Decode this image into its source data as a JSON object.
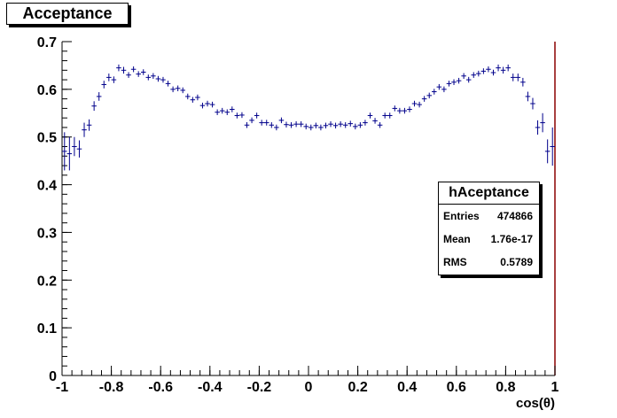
{
  "chart_data": {
    "type": "scatter",
    "title": "Acceptance",
    "xlabel": "cos(θ)",
    "ylabel": "",
    "xlim": [
      -1,
      1
    ],
    "ylim": [
      0,
      0.7
    ],
    "x_ticks": [
      "-1",
      "-0.8",
      "-0.6",
      "-0.4",
      "-0.2",
      "0",
      "0.2",
      "0.4",
      "0.6",
      "0.8",
      "1"
    ],
    "y_ticks": [
      "0",
      "0.1",
      "0.2",
      "0.3",
      "0.4",
      "0.5",
      "0.6",
      "0.7"
    ],
    "grid": false,
    "marker_color": "#00008b",
    "x": [
      -0.99,
      -0.97,
      -0.95,
      -0.93,
      -0.91,
      -0.89,
      -0.87,
      -0.85,
      -0.83,
      -0.81,
      -0.79,
      -0.77,
      -0.75,
      -0.73,
      -0.71,
      -0.69,
      -0.67,
      -0.65,
      -0.63,
      -0.61,
      -0.59,
      -0.57,
      -0.55,
      -0.53,
      -0.51,
      -0.49,
      -0.47,
      -0.45,
      -0.43,
      -0.41,
      -0.39,
      -0.37,
      -0.35,
      -0.33,
      -0.31,
      -0.29,
      -0.27,
      -0.25,
      -0.23,
      -0.21,
      -0.19,
      -0.17,
      -0.15,
      -0.13,
      -0.11,
      -0.09,
      -0.07,
      -0.05,
      -0.03,
      -0.01,
      0.01,
      0.03,
      0.05,
      0.07,
      0.09,
      0.11,
      0.13,
      0.15,
      0.17,
      0.19,
      0.21,
      0.23,
      0.25,
      0.27,
      0.29,
      0.31,
      0.33,
      0.35,
      0.37,
      0.39,
      0.41,
      0.43,
      0.45,
      0.47,
      0.49,
      0.51,
      0.53,
      0.55,
      0.57,
      0.59,
      0.61,
      0.63,
      0.65,
      0.67,
      0.69,
      0.71,
      0.73,
      0.75,
      0.77,
      0.79,
      0.81,
      0.83,
      0.85,
      0.87,
      0.89,
      0.91,
      0.93,
      0.95,
      0.97,
      0.99
    ],
    "y": [
      0.47,
      0.465,
      0.48,
      0.475,
      0.515,
      0.525,
      0.565,
      0.585,
      0.61,
      0.625,
      0.62,
      0.645,
      0.64,
      0.63,
      0.642,
      0.632,
      0.636,
      0.625,
      0.628,
      0.622,
      0.62,
      0.612,
      0.6,
      0.602,
      0.598,
      0.585,
      0.578,
      0.583,
      0.566,
      0.57,
      0.568,
      0.552,
      0.555,
      0.552,
      0.558,
      0.545,
      0.546,
      0.525,
      0.535,
      0.545,
      0.53,
      0.53,
      0.525,
      0.52,
      0.535,
      0.526,
      0.525,
      0.527,
      0.527,
      0.522,
      0.52,
      0.524,
      0.52,
      0.524,
      0.527,
      0.524,
      0.527,
      0.525,
      0.528,
      0.522,
      0.525,
      0.53,
      0.545,
      0.534,
      0.525,
      0.545,
      0.545,
      0.56,
      0.555,
      0.555,
      0.558,
      0.57,
      0.568,
      0.58,
      0.587,
      0.595,
      0.605,
      0.6,
      0.612,
      0.615,
      0.618,
      0.628,
      0.62,
      0.63,
      0.633,
      0.638,
      0.642,
      0.635,
      0.645,
      0.64,
      0.645,
      0.625,
      0.625,
      0.615,
      0.585,
      0.57,
      0.52,
      0.53,
      0.47,
      0.48
    ],
    "yerr": [
      0.04,
      0.035,
      0.02,
      0.018,
      0.015,
      0.012,
      0.01,
      0.009,
      0.008,
      0.008,
      0.007,
      0.007,
      0.007,
      0.006,
      0.006,
      0.006,
      0.006,
      0.006,
      0.006,
      0.006,
      0.006,
      0.006,
      0.006,
      0.006,
      0.006,
      0.006,
      0.006,
      0.006,
      0.006,
      0.006,
      0.006,
      0.006,
      0.006,
      0.006,
      0.006,
      0.006,
      0.006,
      0.006,
      0.006,
      0.006,
      0.006,
      0.006,
      0.006,
      0.006,
      0.006,
      0.006,
      0.006,
      0.006,
      0.006,
      0.006,
      0.006,
      0.006,
      0.006,
      0.006,
      0.006,
      0.006,
      0.006,
      0.006,
      0.006,
      0.006,
      0.006,
      0.006,
      0.006,
      0.006,
      0.006,
      0.006,
      0.006,
      0.006,
      0.006,
      0.006,
      0.006,
      0.006,
      0.006,
      0.006,
      0.006,
      0.006,
      0.006,
      0.006,
      0.006,
      0.006,
      0.006,
      0.006,
      0.006,
      0.006,
      0.006,
      0.006,
      0.006,
      0.006,
      0.007,
      0.007,
      0.007,
      0.008,
      0.008,
      0.009,
      0.01,
      0.012,
      0.015,
      0.02,
      0.025,
      0.04
    ]
  },
  "stats": {
    "name": "hAceptance",
    "entries_label": "Entries",
    "entries_value": "474866",
    "mean_label": "Mean",
    "mean_value": "1.76e-17",
    "rms_label": "RMS",
    "rms_value": "0.5789"
  }
}
